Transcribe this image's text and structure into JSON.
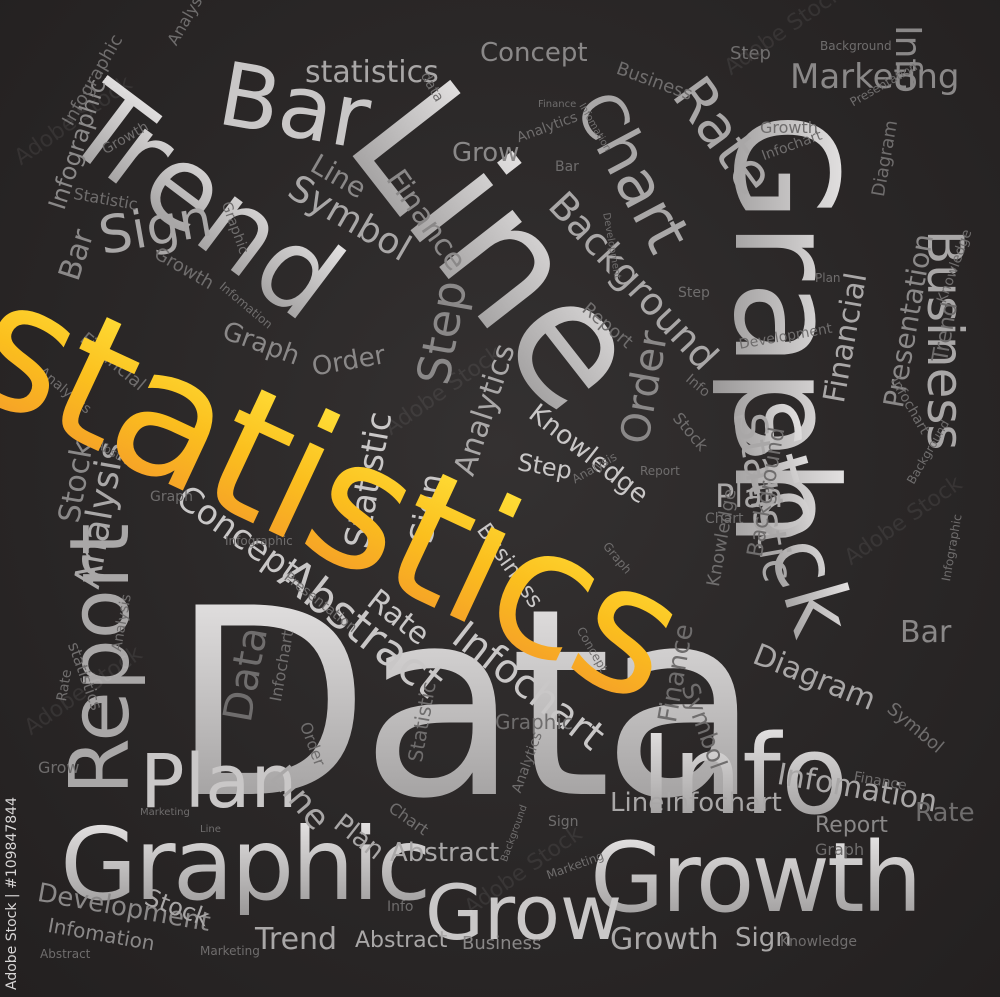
{
  "hero": "statistics",
  "watermark": [
    "Adobe Stock",
    "Adobe Stock",
    "Adobe Stock",
    "Adobe Stock",
    "Adobe Stock",
    "Adobe Stock"
  ],
  "side_text": "Adobe Stock | #109847844",
  "words": {
    "data": "Data",
    "line": "Line",
    "trend": "Trend",
    "graph": "Graph",
    "bar": "Bar",
    "chart": "Chart",
    "rate": "Rate",
    "stock": "Stock",
    "report": "Report",
    "info": "Info",
    "plan": "Plan",
    "graphic": "Graphic",
    "growth": "Growth",
    "grow": "Grow",
    "statistic": "Statistic",
    "business": "Business",
    "infochart": "Infochart",
    "abstract": "Abstract",
    "diagram": "Diagram",
    "analysis": "Analysis",
    "marketing": "Marketing",
    "concept": "Concept",
    "infographic": "Infographic",
    "sign": "Sign",
    "symbol": "Symbol",
    "step": "Step",
    "order": "Order",
    "financial": "Financial",
    "finance": "Finance",
    "background": "Background",
    "knowledge": "Knowledge",
    "presentation": "Presentation",
    "analytics": "Analytics",
    "development": "Development",
    "infomation": "Infomation",
    "statistics_s": "statistics",
    "data_s": "data"
  }
}
